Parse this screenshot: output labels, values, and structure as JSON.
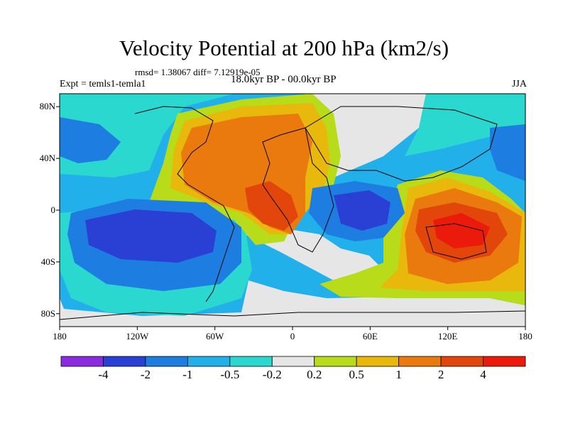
{
  "title": "Velocity Potential at 200 hPa (km2/s)",
  "stats": "rmsd= 1.38067 diff= 7.12919e-05",
  "experiment": "Expt = temls1-temla1",
  "period": "18.0kyr BP - 00.0kyr BP",
  "season": "JJA",
  "lat_ticks": [
    "80N",
    "40N",
    "0",
    "40S",
    "80S"
  ],
  "lon_ticks": [
    "180",
    "120W",
    "60W",
    "0",
    "60E",
    "120E",
    "180"
  ],
  "colorbar": {
    "labels": [
      "-4",
      "-2",
      "-1",
      "-0.5",
      "-0.2",
      "0.2",
      "0.5",
      "1",
      "2",
      "4"
    ],
    "colors": [
      "#8a2be2",
      "#2a3fd4",
      "#1e7de0",
      "#22b0ea",
      "#2ad8d0",
      "#e6e6e6",
      "#b8dc1a",
      "#e8b80c",
      "#ea7a0e",
      "#e2460a",
      "#ec1a0a"
    ]
  },
  "chart_data": {
    "type": "heatmap",
    "title": "Velocity Potential at 200 hPa (km2/s)",
    "x_range": [
      -180,
      180
    ],
    "y_range": [
      -90,
      90
    ],
    "levels": [
      -4,
      -2,
      -1,
      -0.5,
      -0.2,
      0.2,
      0.5,
      1,
      2,
      4
    ],
    "features": [
      {
        "center": [
          -115,
          -25
        ],
        "value": -3
      },
      {
        "center": [
          55,
          5
        ],
        "value": -2.5
      },
      {
        "center": [
          -30,
          20
        ],
        "value": 1.5
      },
      {
        "center": [
          -20,
          0
        ],
        "value": 2.5
      },
      {
        "center": [
          125,
          -15
        ],
        "value": 3
      },
      {
        "center": [
          -150,
          60
        ],
        "value": -0.6
      },
      {
        "center": [
          165,
          45
        ],
        "value": -0.8
      }
    ]
  }
}
